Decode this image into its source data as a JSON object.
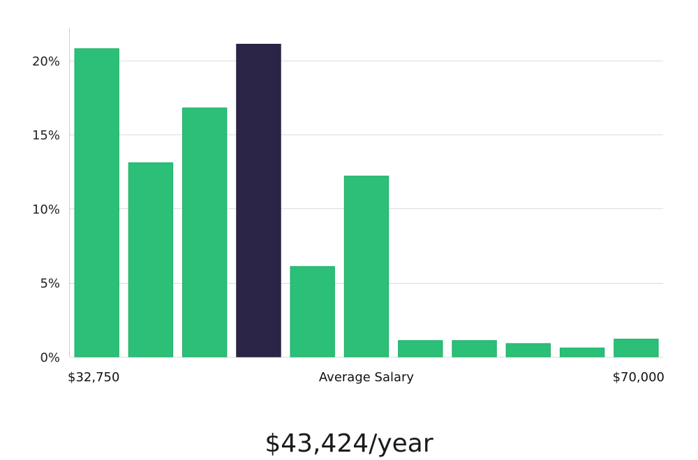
{
  "chart_data": {
    "type": "bar",
    "title": "",
    "xlabel": "Average Salary",
    "ylabel": "",
    "ylim": [
      0,
      22.2
    ],
    "yticks": [
      0,
      5,
      10,
      15,
      20
    ],
    "ytick_labels": [
      "0%",
      "5%",
      "10%",
      "15%",
      "20%"
    ],
    "x_range_labels": {
      "min": "$32,750",
      "max": "$70,000"
    },
    "values": [
      20.8,
      13.1,
      16.8,
      21.1,
      6.1,
      12.2,
      1.1,
      1.1,
      0.9,
      0.6,
      1.2
    ],
    "highlight_index": 3,
    "colors": {
      "bar": "#2bbf77",
      "highlight": "#2a2546",
      "grid": "#dcdcdc"
    },
    "grid": true
  },
  "summary": {
    "average_salary": "$43,424/year"
  }
}
